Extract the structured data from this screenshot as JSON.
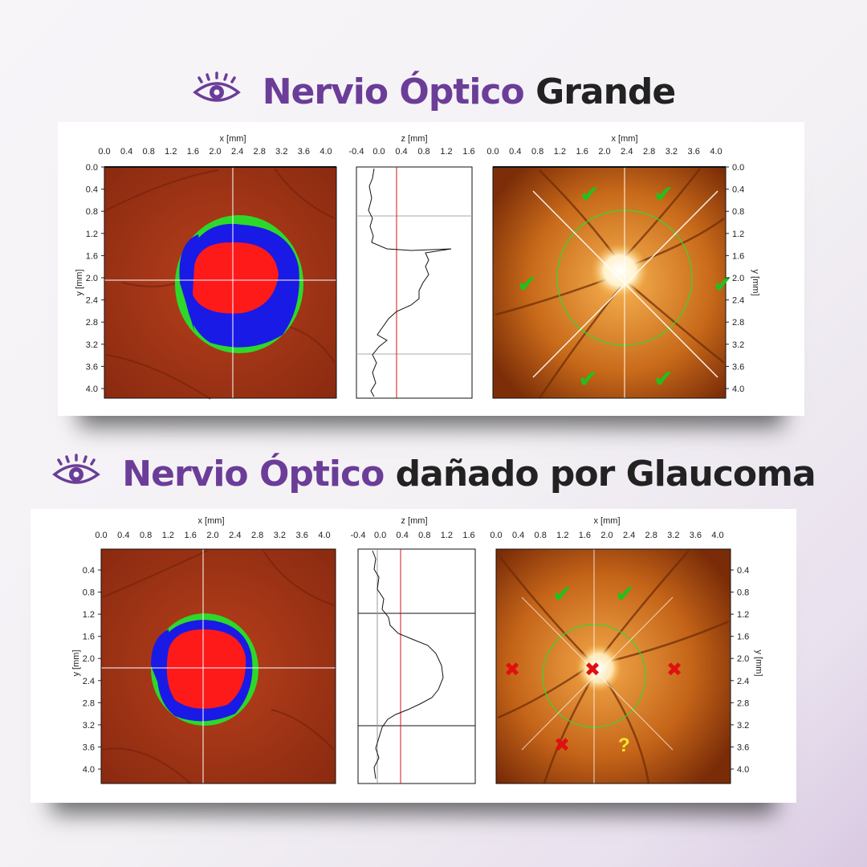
{
  "colors": {
    "purple": "#6b3d98",
    "dark": "#222222",
    "check": "#22c01e",
    "cross": "#e01010",
    "warn": "#f5e62a"
  },
  "sections": [
    {
      "title_highlight": "Nervio Óptico",
      "title_rest": "Grande",
      "icon": "eye-icon",
      "figure": {
        "x_label": "x [mm]",
        "z_label": "z [mm]",
        "y_label": "y [mm]",
        "x_ticks": [
          "0.0",
          "0.4",
          "0.8",
          "1.2",
          "1.6",
          "2.0",
          "2.4",
          "2.8",
          "3.2",
          "3.6",
          "4.0"
        ],
        "z_ticks": [
          "-0.4",
          "0.0",
          "0.4",
          "0.8",
          "1.2",
          "1.6"
        ],
        "y_ticks": [
          "0.0",
          "0.4",
          "0.8",
          "1.2",
          "1.6",
          "2.0",
          "2.4",
          "2.8",
          "3.2",
          "3.6",
          "4.0"
        ],
        "markers": [
          "check",
          "check",
          "check",
          "check",
          "check",
          "check"
        ]
      }
    },
    {
      "title_highlight": "Nervio Óptico",
      "title_rest": "dañado por Glaucoma",
      "icon": "eye-icon",
      "figure": {
        "x_label": "x [mm]",
        "z_label": "z [mm]",
        "y_label": "y [mm]",
        "x_ticks": [
          "0.0",
          "0.4",
          "0.8",
          "1.2",
          "1.6",
          "2.0",
          "2.4",
          "2.8",
          "3.2",
          "3.6",
          "4.0"
        ],
        "z_ticks": [
          "-0.4",
          "0.0",
          "0.4",
          "0.8",
          "1.2",
          "1.6"
        ],
        "y_ticks": [
          "0.4",
          "0.8",
          "1.2",
          "1.6",
          "2.0",
          "2.4",
          "2.8",
          "3.2",
          "3.6",
          "4.0"
        ],
        "markers": [
          "check",
          "check",
          "cross",
          "cross",
          "cross",
          "cross",
          "warning"
        ]
      }
    }
  ]
}
